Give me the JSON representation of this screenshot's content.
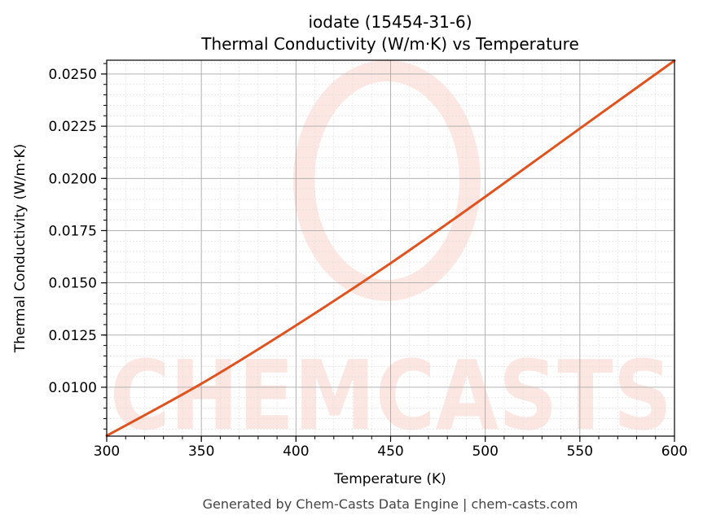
{
  "chart_data": {
    "type": "line",
    "title": "iodate (15454-31-6)",
    "subtitle": "Thermal Conductivity (W/m·K) vs Temperature",
    "xlabel": "Temperature (K)",
    "ylabel": "Thermal Conductivity (W/m·K)",
    "xlim": [
      300,
      600
    ],
    "ylim": [
      0.00766,
      0.02566
    ],
    "x_ticks": [
      300,
      350,
      400,
      450,
      500,
      550,
      600
    ],
    "y_ticks": [
      "0.0100",
      "0.0125",
      "0.0150",
      "0.0175",
      "0.0200",
      "0.0225",
      "0.0250"
    ],
    "grid": true,
    "series": [
      {
        "color": "#e0531f",
        "x": [
          300,
          350,
          400,
          450,
          500,
          550,
          600
        ],
        "y": [
          0.00768,
          0.01017,
          0.01296,
          0.01594,
          0.01912,
          0.02239,
          0.02564
        ]
      }
    ],
    "watermark": "CHEMCASTS",
    "footer": "Generated by Chem-Casts Data Engine | chem-casts.com"
  }
}
